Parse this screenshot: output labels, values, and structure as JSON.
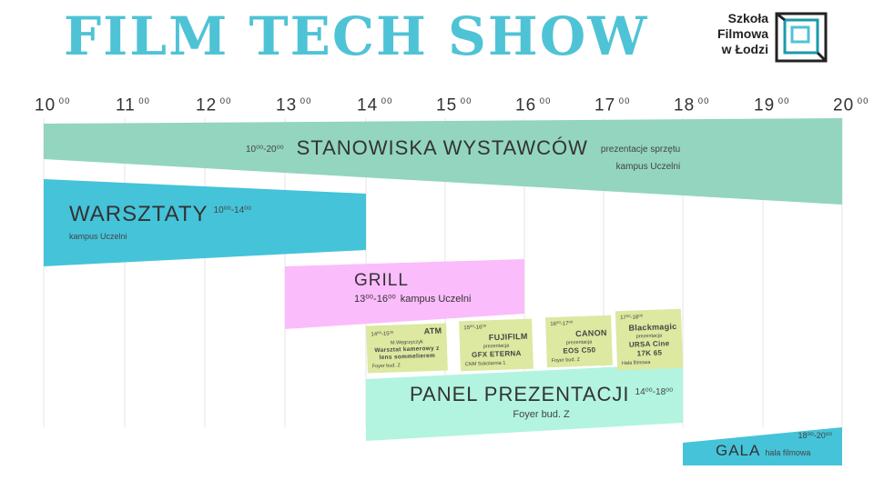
{
  "title": "FILM TECH SHOW",
  "logo": {
    "lines": [
      "Szkoła",
      "Filmowa",
      "w Łodzi"
    ],
    "color": "#1a9aa8"
  },
  "colors": {
    "title": "#4fc3d6",
    "exhibitors": "#93d5bf",
    "workshops": "#45c3d9",
    "grill": "#fbbcfb",
    "panel": "#b2f4df",
    "cards": "#dde8a0",
    "gala": "#45c3d9"
  },
  "hours": [
    "10",
    "11",
    "12",
    "13",
    "14",
    "15",
    "16",
    "17",
    "18",
    "19",
    "20"
  ],
  "hour_suffix": "00",
  "events": {
    "exhibitors": {
      "time": "10⁰⁰-20⁰⁰",
      "name": "STANOWISKA WYSTAWCÓW",
      "desc": "prezentacje sprzętu",
      "place": "kampus Uczelni"
    },
    "workshops": {
      "name": "WARSZTATY",
      "time": "10⁰⁰-14⁰⁰",
      "place": "kampus Uczelni"
    },
    "grill": {
      "name": "GRILL",
      "time": "13⁰⁰-16⁰⁰",
      "place": "kampus Uczelni"
    },
    "panel": {
      "name": "PANEL PREZENTACJI",
      "time": "14⁰⁰-18⁰⁰",
      "place": "Foyer bud. Z"
    },
    "gala": {
      "name": "GALA",
      "time": "18⁰⁰-20⁰⁰",
      "place": "hala filmowa"
    }
  },
  "cards": [
    {
      "time": "14⁰⁰-15⁰⁰",
      "brand": "ATM",
      "sub": "M.Węgrzyczyk",
      "product": "Warsztat kamerowy z lens sommelierem",
      "place": "Foyer bud. Z"
    },
    {
      "time": "15⁰⁰-16⁰⁰",
      "brand": "FUJIFILM",
      "sub": "prezentacja",
      "product": "GFX ETERNA",
      "place": "CNM Sokolarnia 1"
    },
    {
      "time": "16⁰⁰-17⁰⁰",
      "brand": "CANON",
      "sub": "prezentacja",
      "product": "EOS C50",
      "place": "Foyer bud. Z"
    },
    {
      "time": "17⁰⁰-18⁰⁰",
      "brand": "Blackmagic",
      "sub": "prezentacja",
      "product": "URSA Cine 17K 65",
      "place": "Hala filmowa"
    }
  ]
}
